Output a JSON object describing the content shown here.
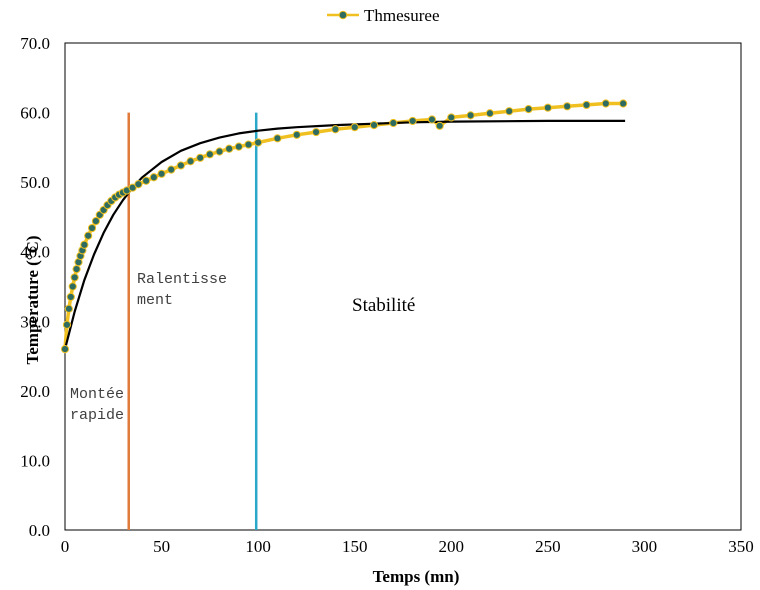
{
  "chart_data": {
    "type": "scatter",
    "title": "",
    "xlabel": "Temps (mn)",
    "ylabel": "Temperature (°C)",
    "xlim": [
      0,
      350
    ],
    "ylim": [
      0,
      70
    ],
    "x_ticks": [
      "0",
      "50",
      "100",
      "150",
      "200",
      "250",
      "300",
      "350"
    ],
    "y_ticks": [
      "0.0",
      "10.0",
      "20.0",
      "30.0",
      "40.0",
      "50.0",
      "60.0",
      "70.0"
    ],
    "grid": false,
    "legend_position": "top-center",
    "series": [
      {
        "name": "Thmesuree",
        "kind": "measured",
        "line_color": "#f0c020",
        "marker_color": "#2e6b60",
        "x": [
          0,
          1,
          2,
          3,
          4,
          5,
          6,
          7,
          8,
          9,
          10,
          12,
          14,
          16,
          18,
          20,
          22,
          24,
          26,
          28,
          30,
          32,
          35,
          38,
          42,
          46,
          50,
          55,
          60,
          65,
          70,
          75,
          80,
          85,
          90,
          95,
          100,
          110,
          120,
          130,
          140,
          150,
          160,
          170,
          180,
          190,
          194,
          200,
          210,
          220,
          230,
          240,
          250,
          260,
          270,
          280,
          289
        ],
        "y": [
          26.0,
          29.5,
          31.8,
          33.5,
          35.0,
          36.3,
          37.5,
          38.5,
          39.4,
          40.2,
          41.0,
          42.3,
          43.4,
          44.4,
          45.3,
          46.0,
          46.7,
          47.3,
          47.8,
          48.2,
          48.5,
          48.8,
          49.2,
          49.7,
          50.2,
          50.7,
          51.2,
          51.8,
          52.4,
          53.0,
          53.5,
          54.0,
          54.4,
          54.8,
          55.1,
          55.4,
          55.7,
          56.3,
          56.8,
          57.2,
          57.6,
          57.9,
          58.2,
          58.5,
          58.8,
          59.0,
          58.1,
          59.3,
          59.6,
          59.9,
          60.2,
          60.5,
          60.7,
          60.9,
          61.1,
          61.3,
          61.3
        ]
      },
      {
        "name": "",
        "kind": "model",
        "line_color": "#000000",
        "x": [
          0,
          5,
          10,
          15,
          20,
          25,
          30,
          35,
          40,
          50,
          60,
          70,
          80,
          90,
          100,
          110,
          120,
          140,
          160,
          180,
          200,
          250,
          290
        ],
        "y": [
          26.0,
          31.4,
          35.9,
          39.6,
          42.7,
          45.3,
          47.4,
          49.2,
          50.7,
          52.9,
          54.5,
          55.6,
          56.4,
          57.0,
          57.4,
          57.7,
          57.9,
          58.2,
          58.4,
          58.6,
          58.7,
          58.8,
          58.8
        ]
      }
    ],
    "reference_lines": [
      {
        "x": 33,
        "y_range": [
          0,
          60
        ],
        "color": "#e07a3a"
      },
      {
        "x": 99,
        "y_range": [
          0,
          60
        ],
        "color": "#2aa8c8"
      }
    ],
    "annotations": [
      {
        "lines": [
          "Montée",
          "rapide"
        ],
        "style": "mono"
      },
      {
        "lines": [
          "Ralentisse",
          "ment"
        ],
        "style": "mono"
      },
      {
        "lines": [
          "Stabilité"
        ],
        "style": "serif"
      }
    ]
  }
}
